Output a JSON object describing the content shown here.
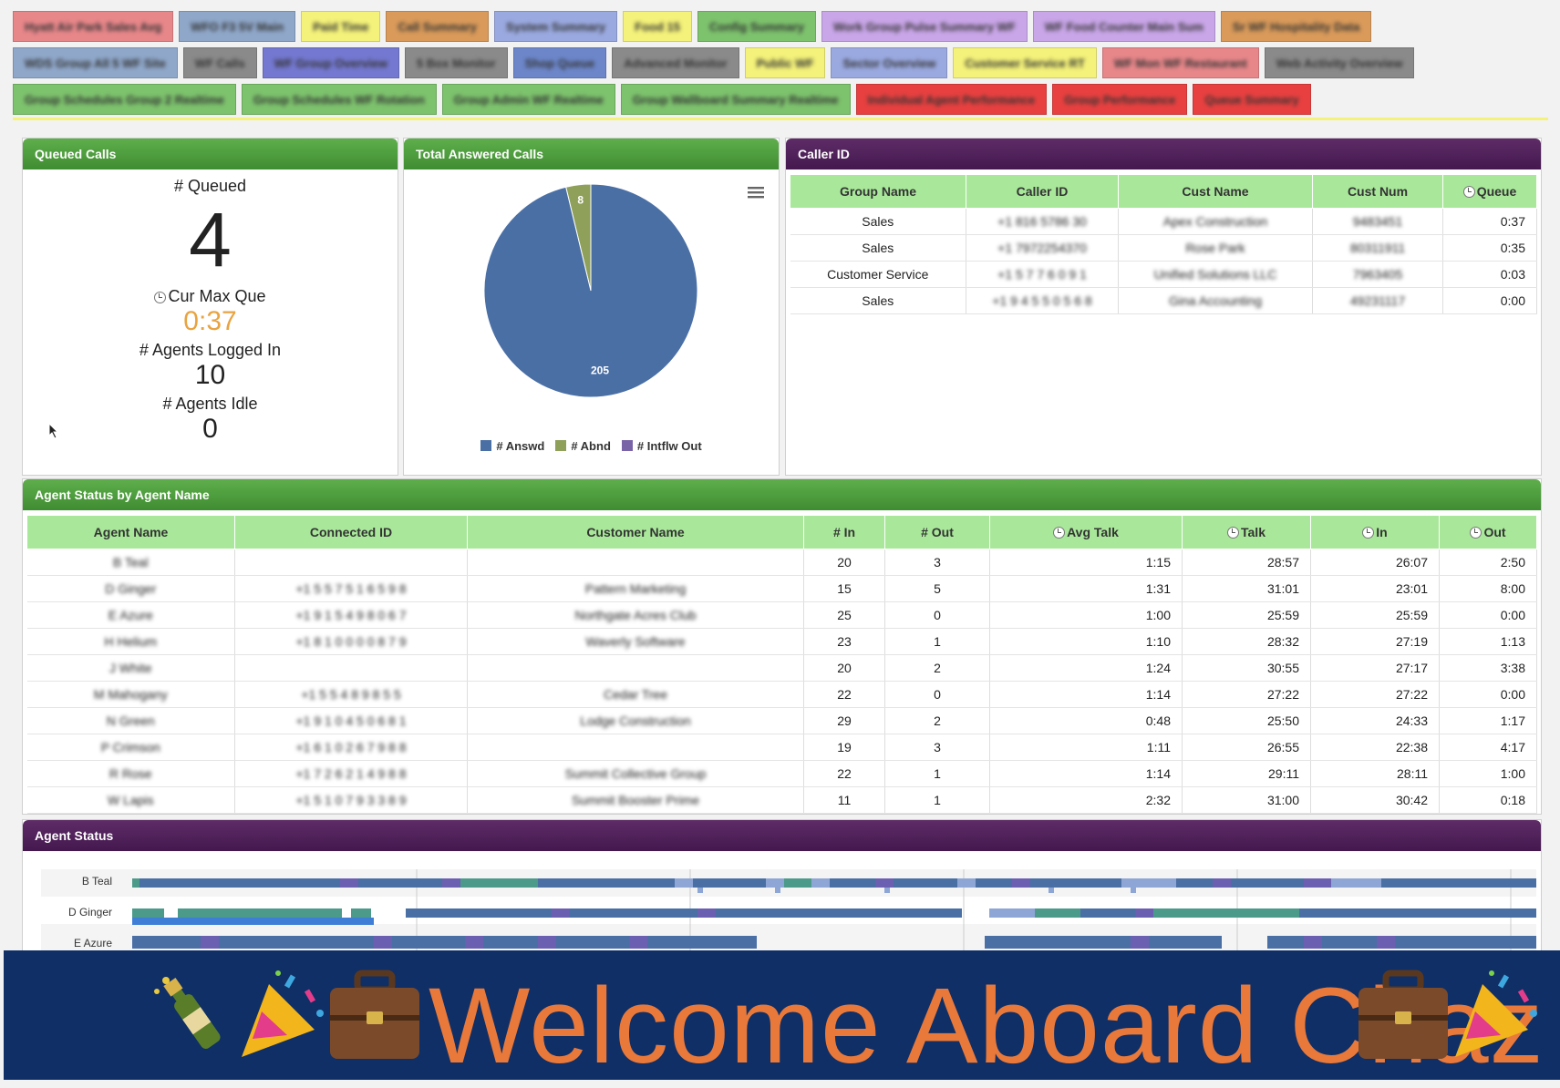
{
  "tabs": {
    "row1": [
      {
        "label": "Hyatt Air Park Sales Avg",
        "color": "#e8878a"
      },
      {
        "label": "WFO F3 5V Main",
        "color": "#8fa7c9"
      },
      {
        "label": "Paid Time",
        "color": "#f4f27a"
      },
      {
        "label": "Call Summary",
        "color": "#d99a5a"
      },
      {
        "label": "System Summary",
        "color": "#9aa9e0"
      },
      {
        "label": "Food 15",
        "color": "#f4f27a"
      },
      {
        "label": "Config Summary",
        "color": "#7dc26d"
      },
      {
        "label": "Work Group Pulse Summary WF",
        "color": "#c9a6e8"
      },
      {
        "label": "WF Food Counter Main Sum",
        "color": "#c9a6e8"
      },
      {
        "label": "Sr WF Hospitality Data",
        "color": "#d99a5a"
      }
    ],
    "row2": [
      {
        "label": "WDS Group All 5 WF Site",
        "color": "#8fa7c9"
      },
      {
        "label": "WF Calls",
        "color": "#8a8a8a"
      },
      {
        "label": "WF Group Overview",
        "color": "#7478d0"
      },
      {
        "label": "5 Box Monitor",
        "color": "#8a8a8a"
      },
      {
        "label": "Shop Queue",
        "color": "#6c86c9"
      },
      {
        "label": "Advanced Monitor",
        "color": "#8a8a8a"
      },
      {
        "label": "Public WF",
        "color": "#f4f27a"
      },
      {
        "label": "Sector Overview",
        "color": "#9aa9e0"
      },
      {
        "label": "Customer Service RT",
        "color": "#f4f27a"
      },
      {
        "label": "WF Mon WF Restaurant",
        "color": "#e8878a"
      },
      {
        "label": "Web Activity Overview",
        "color": "#8a8a8a"
      }
    ],
    "row3": [
      {
        "label": "Group Schedules Group 2 Realtime",
        "color": "#7dc26d"
      },
      {
        "label": "Group Schedules WF Rotation",
        "color": "#7dc26d"
      },
      {
        "label": "Group Admin WF Realtime",
        "color": "#7dc26d"
      },
      {
        "label": "Group Wallboard Summary Realtime",
        "color": "#7dc26d"
      },
      {
        "label": "Individual Agent Performance",
        "color": "#e84040"
      },
      {
        "label": "Group Performance",
        "color": "#e84040"
      },
      {
        "label": "Queue Summary",
        "color": "#e84040"
      }
    ]
  },
  "queued": {
    "title": "Queued Calls",
    "queued_label": "# Queued",
    "queued_value": "4",
    "max_label": "Cur Max Que",
    "max_value": "0:37",
    "logged_label": "# Agents Logged In",
    "logged_value": "10",
    "idle_label": "# Agents Idle",
    "idle_value": "0"
  },
  "answered": {
    "title": "Total Answered Calls",
    "legend": [
      "# Answd",
      "# Abnd",
      "# Intflw Out"
    ]
  },
  "chart_data": {
    "type": "pie",
    "title": "",
    "categories": [
      "# Answd",
      "# Abnd",
      "# Intflw Out"
    ],
    "values": [
      205,
      8,
      0
    ],
    "colors": [
      "#4a6fa5",
      "#8fa05a",
      "#7a64a8"
    ],
    "legend": "bottom"
  },
  "callerid": {
    "title": "Caller ID",
    "headers": [
      "Group Name",
      "Caller ID",
      "Cust Name",
      "Cust Num",
      "Queue"
    ],
    "rows": [
      [
        "Sales",
        "+1 816 5786 30",
        "Apex Construction",
        "9483451",
        "0:37"
      ],
      [
        "Sales",
        "+1 7972254370",
        "Rose Park",
        "80311911",
        "0:35"
      ],
      [
        "Customer Service",
        "+1 5 7 7 6 0 9 1",
        "Unified Solutions LLC",
        "7963405",
        "0:03"
      ],
      [
        "Sales",
        "+1 9 4 5 5 0 5 6 8",
        "Gina Accounting",
        "49231117",
        "0:00"
      ]
    ]
  },
  "agents": {
    "title": "Agent Status by Agent Name",
    "headers": [
      "Agent Name",
      "Connected ID",
      "Customer Name",
      "# In",
      "# Out",
      "Avg Talk",
      "Talk",
      "In",
      "Out"
    ],
    "rows": [
      [
        "B Teal",
        "",
        "",
        "20",
        "3",
        "1:15",
        "28:57",
        "26:07",
        "2:50"
      ],
      [
        "D Ginger",
        "+1 5 5 7 5 1 6 5 9 8",
        "Pattern Marketing",
        "15",
        "5",
        "1:31",
        "31:01",
        "23:01",
        "8:00"
      ],
      [
        "E Azure",
        "+1 9 1 5 4 9 8 0 6 7",
        "Northgate Acres Club",
        "25",
        "0",
        "1:00",
        "25:59",
        "25:59",
        "0:00"
      ],
      [
        "H Helium",
        "+1 8 1 0 0 0 0 8 7 9",
        "Waverly Software",
        "23",
        "1",
        "1:10",
        "28:32",
        "27:19",
        "1:13"
      ],
      [
        "J White",
        "",
        "",
        "20",
        "2",
        "1:24",
        "30:55",
        "27:17",
        "3:38"
      ],
      [
        "M Mahogany",
        "+1 5 5 4 8 9 8 5 5",
        "Cedar Tree",
        "22",
        "0",
        "1:14",
        "27:22",
        "27:22",
        "0:00"
      ],
      [
        "N Green",
        "+1 9 1 0 4 5 0 6 8 1",
        "Lodge Construction",
        "29",
        "2",
        "0:48",
        "25:50",
        "24:33",
        "1:17"
      ],
      [
        "P Crimson",
        "+1 6 1 0 2 6 7 9 8 8",
        "",
        "19",
        "3",
        "1:11",
        "26:55",
        "22:38",
        "4:17"
      ],
      [
        "R Rose",
        "+1 7 2 6 2 1 4 9 8 8",
        "Summit Collective Group",
        "22",
        "1",
        "1:14",
        "29:11",
        "28:11",
        "1:00"
      ],
      [
        "W Lapis",
        "+1 5 1 0 7 9 3 3 8 9",
        "Summit Booster Prime",
        "11",
        "1",
        "2:32",
        "31:00",
        "30:42",
        "0:18"
      ]
    ]
  },
  "status": {
    "title": "Agent Status",
    "agents": [
      "B Teal",
      "D Ginger",
      "E Azure"
    ]
  },
  "banner": {
    "text": "Welcome Aboard Chaz"
  }
}
